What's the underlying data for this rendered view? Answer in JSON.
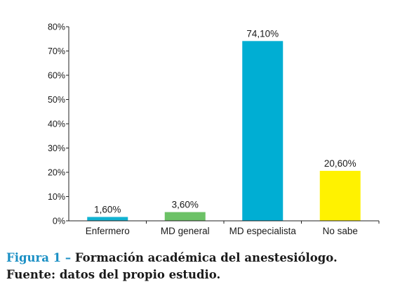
{
  "chart_data": {
    "type": "bar",
    "categories": [
      "Enfermero",
      "MD general",
      "MD especialista",
      "No sabe"
    ],
    "values": [
      1.6,
      3.6,
      74.1,
      20.6
    ],
    "data_labels": [
      "1,60%",
      "3,60%",
      "74,10%",
      "20,60%"
    ],
    "colors": [
      "#12b3d2",
      "#6cc266",
      "#00aed3",
      "#fff200"
    ],
    "ylim": [
      0,
      80
    ],
    "y_ticks": [
      0,
      10,
      20,
      30,
      40,
      50,
      60,
      70,
      80
    ],
    "y_tick_labels": [
      "0%",
      "10%",
      "20%",
      "30%",
      "40%",
      "50%",
      "60%",
      "70%",
      "80%"
    ],
    "xlabel": "",
    "ylabel": "",
    "grid": false,
    "legend": "none"
  },
  "caption": {
    "figure_label": "Figura 1 –",
    "title": "Formación académica del anestesiólogo.",
    "source": "Fuente: datos del propio estudio."
  }
}
